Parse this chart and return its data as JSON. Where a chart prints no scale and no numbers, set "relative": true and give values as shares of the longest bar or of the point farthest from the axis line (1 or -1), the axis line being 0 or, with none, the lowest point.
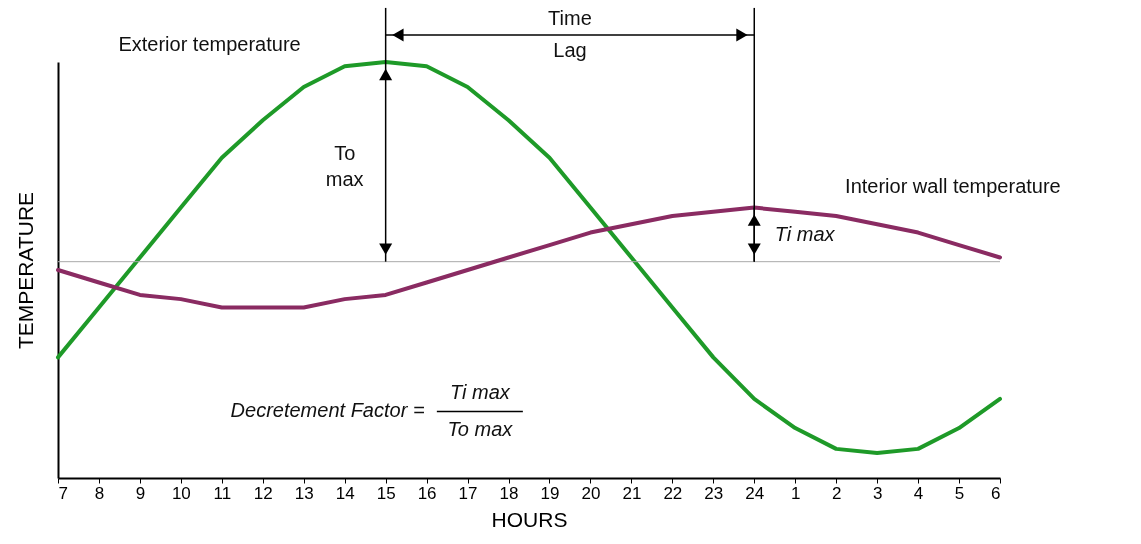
{
  "chart_data": {
    "type": "line",
    "relative": true,
    "xlabel": "HOURS",
    "ylabel": "TEMPERATURE",
    "categories": [
      "7",
      "8",
      "9",
      "10",
      "11",
      "12",
      "13",
      "14",
      "15",
      "16",
      "17",
      "18",
      "19",
      "20",
      "21",
      "22",
      "23",
      "24",
      "1",
      "2",
      "3",
      "4",
      "5",
      "6"
    ],
    "series": [
      {
        "name": "Exterior temperature",
        "color": "#1e9a28",
        "values": [
          0.29,
          0.41,
          0.53,
          0.65,
          0.77,
          0.86,
          0.94,
          0.99,
          1.0,
          0.99,
          0.94,
          0.86,
          0.77,
          0.65,
          0.53,
          0.41,
          0.29,
          0.19,
          0.12,
          0.07,
          0.06,
          0.07,
          0.12,
          0.19
        ]
      },
      {
        "name": "Interior wall temperature",
        "color": "#8a2b62",
        "values": [
          0.5,
          0.47,
          0.44,
          0.43,
          0.41,
          0.41,
          0.41,
          0.43,
          0.44,
          0.47,
          0.5,
          0.53,
          0.56,
          0.59,
          0.61,
          0.63,
          0.64,
          0.65,
          0.64,
          0.63,
          0.61,
          0.59,
          0.56,
          0.53
        ]
      }
    ],
    "ref_lines": [
      {
        "axis": "y",
        "value": 0.52,
        "color": "#aaaaaa"
      }
    ],
    "annotations": [
      "Time Lag",
      "To max",
      "Ti max",
      "Decretement Factor =",
      "Ti max",
      "To max"
    ]
  }
}
